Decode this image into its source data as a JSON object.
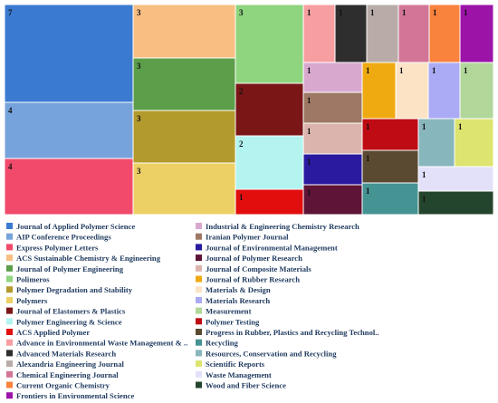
{
  "chart_data": {
    "type": "treemap",
    "title": "",
    "items": [
      {
        "name": "Journal of Applied Polymer Science",
        "value": 7,
        "color": "#3a7bd1"
      },
      {
        "name": "AIP Conference Proceedings",
        "value": 4,
        "color": "#76a3db"
      },
      {
        "name": "Express Polymer Letters",
        "value": 4,
        "color": "#f24a6b"
      },
      {
        "name": "ACS Sustainable Chemistry & Engineering",
        "value": 3,
        "color": "#f8be82"
      },
      {
        "name": "Journal of Polymer Engineering",
        "value": 3,
        "color": "#5c9e4a"
      },
      {
        "name": "Polimeros",
        "value": 3,
        "color": "#8fd47e"
      },
      {
        "name": "Polymer Degradation and Stability",
        "value": 3,
        "color": "#b39a2c"
      },
      {
        "name": "Polymers",
        "value": 3,
        "color": "#ecd065"
      },
      {
        "name": "Journal of Elastomers & Plastics",
        "value": 2,
        "color": "#7a1616"
      },
      {
        "name": "Polymer Engineering & Science",
        "value": 2,
        "color": "#b3f4f0"
      },
      {
        "name": "ACS Applied Polymer",
        "value": 1,
        "color": "#e20d0d"
      },
      {
        "name": "Advance in Environmental Waste Management & ..",
        "value": 1,
        "color": "#f79fa0"
      },
      {
        "name": "Advanced Materials Research",
        "value": 1,
        "color": "#2e2e2e"
      },
      {
        "name": "Alexandria Engineering Journal",
        "value": 1,
        "color": "#b9aca8"
      },
      {
        "name": "Chemical Engineering Journal",
        "value": 1,
        "color": "#d27597"
      },
      {
        "name": "Current Organic Chemistry",
        "value": 1,
        "color": "#f9823d"
      },
      {
        "name": "Frontiers in Environmental Science",
        "value": 1,
        "color": "#9c13a8"
      },
      {
        "name": "Industrial & Engineering Chemistry Research",
        "value": 1,
        "color": "#d9a8cf"
      },
      {
        "name": "Iranian Polymer Journal",
        "value": 1,
        "color": "#9e7864"
      },
      {
        "name": "Journal of Environmental Management",
        "value": 1,
        "color": "#291aa0"
      },
      {
        "name": "Journal of Polymer Research",
        "value": 1,
        "color": "#5e1436"
      },
      {
        "name": "Journal of Composite Materials",
        "value": 1,
        "color": "#dbb5ad"
      },
      {
        "name": "Journal of Rubber Research",
        "value": 1,
        "color": "#efaa11"
      },
      {
        "name": "Materials & Design",
        "value": 1,
        "color": "#fde3c6"
      },
      {
        "name": "Materials Research",
        "value": 1,
        "color": "#abaaf4"
      },
      {
        "name": "Measurement",
        "value": 1,
        "color": "#b1d79b"
      },
      {
        "name": "Polymer Testing",
        "value": 1,
        "color": "#bf0b14"
      },
      {
        "name": "Progress in Rubber, Plastics and Recycling Technol..",
        "value": 1,
        "color": "#5a4a32"
      },
      {
        "name": "Recycling",
        "value": 1,
        "color": "#469393"
      },
      {
        "name": "Resources, Conservation and Recycling",
        "value": 1,
        "color": "#88b6bd"
      },
      {
        "name": "Scientific Reports",
        "value": 1,
        "color": "#dde46f"
      },
      {
        "name": "Waste Management",
        "value": 1,
        "color": "#e3e1fa"
      },
      {
        "name": "Wood and Fiber Science",
        "value": 1,
        "color": "#24452d"
      }
    ],
    "legend_position": "bottom"
  }
}
